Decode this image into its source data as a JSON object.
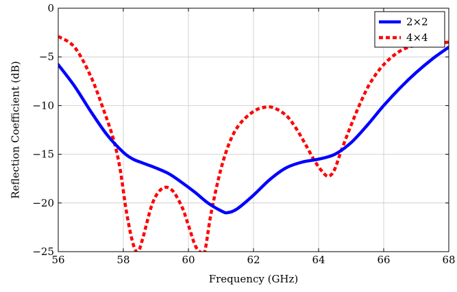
{
  "chart_data": {
    "type": "line",
    "title": "",
    "xlabel": "Frequency (GHz)",
    "ylabel": "Reflection Coefficient (dB)",
    "xlim": [
      56,
      68
    ],
    "ylim": [
      -25,
      0
    ],
    "xticks": [
      56,
      58,
      60,
      62,
      64,
      66,
      68
    ],
    "xtick_labels": [
      "56",
      "58",
      "60",
      "62",
      "64",
      "66",
      "68"
    ],
    "yticks": [
      -25,
      -20,
      -15,
      -10,
      -5,
      0
    ],
    "ytick_labels": [
      "−25",
      "−20",
      "−15",
      "−10",
      "−5",
      "0"
    ],
    "grid": true,
    "legend_position": "top-right",
    "series": [
      {
        "name": "2×2",
        "color": "#0000ff",
        "style": "solid",
        "x": [
          56.0,
          56.5,
          57.0,
          57.5,
          58.0,
          58.3,
          58.6,
          59.0,
          59.4,
          59.8,
          60.2,
          60.6,
          61.0,
          61.2,
          61.5,
          62.0,
          62.5,
          63.0,
          63.5,
          64.0,
          64.5,
          65.0,
          65.5,
          66.0,
          66.5,
          67.0,
          67.5,
          68.0
        ],
        "y": [
          -5.8,
          -8.0,
          -10.6,
          -13.0,
          -14.8,
          -15.5,
          -15.9,
          -16.4,
          -17.0,
          -17.9,
          -18.9,
          -20.0,
          -20.8,
          -21.0,
          -20.6,
          -19.2,
          -17.6,
          -16.4,
          -15.8,
          -15.5,
          -15.0,
          -13.8,
          -12.0,
          -10.0,
          -8.2,
          -6.6,
          -5.2,
          -4.0
        ]
      },
      {
        "name": "4×4",
        "color": "#ff0000",
        "style": "dashed",
        "x": [
          56.0,
          56.5,
          57.0,
          57.4,
          57.7,
          57.9,
          58.1,
          58.3,
          58.45,
          58.6,
          58.9,
          59.2,
          59.5,
          59.8,
          60.0,
          60.2,
          60.35,
          60.5,
          60.7,
          61.0,
          61.3,
          61.6,
          62.0,
          62.3,
          62.6,
          63.0,
          63.3,
          63.6,
          63.9,
          64.2,
          64.35,
          64.5,
          64.7,
          65.0,
          65.3,
          65.6,
          66.0,
          66.5,
          67.0,
          67.5,
          68.0
        ],
        "y": [
          -2.9,
          -4.0,
          -7.0,
          -10.5,
          -13.5,
          -16.5,
          -21.0,
          -24.2,
          -25.0,
          -23.6,
          -20.0,
          -18.5,
          -18.7,
          -20.4,
          -22.3,
          -24.3,
          -25.0,
          -25.0,
          -21.0,
          -16.5,
          -13.5,
          -11.8,
          -10.6,
          -10.2,
          -10.2,
          -11.0,
          -12.3,
          -14.0,
          -15.8,
          -17.1,
          -17.2,
          -16.5,
          -14.6,
          -12.0,
          -9.6,
          -7.6,
          -5.8,
          -4.4,
          -3.8,
          -3.6,
          -3.5
        ]
      }
    ]
  }
}
